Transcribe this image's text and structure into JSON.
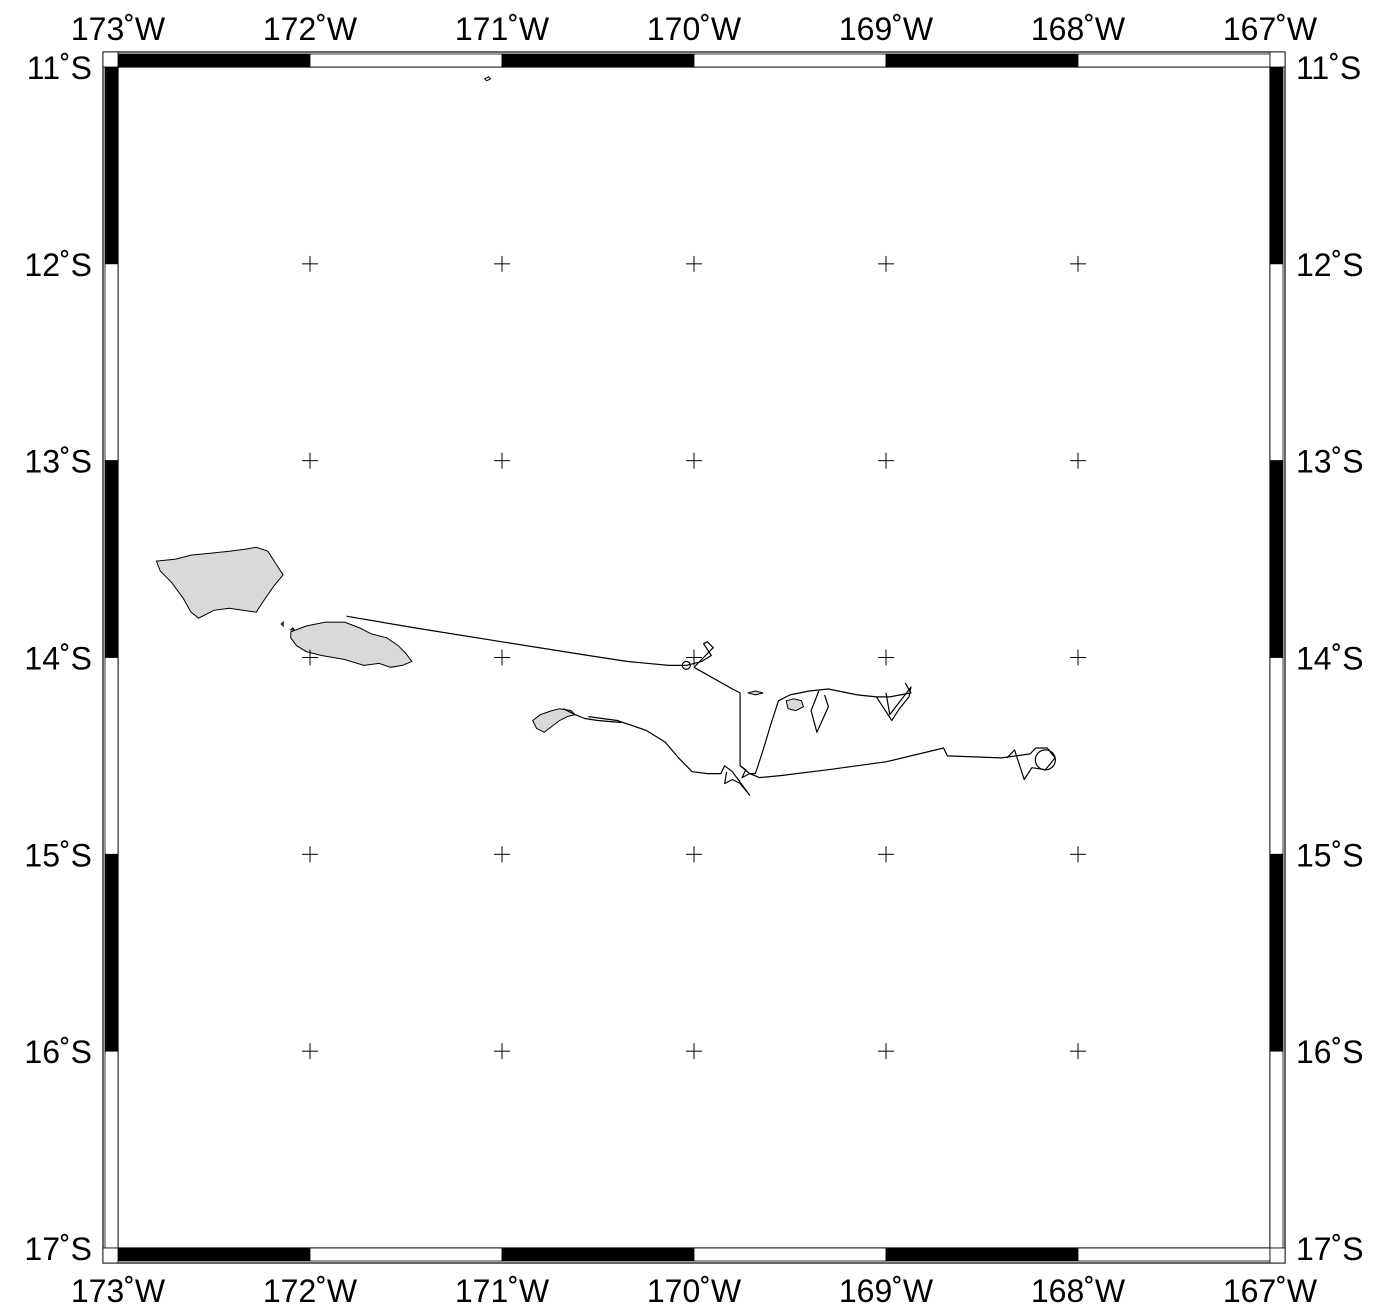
{
  "map": {
    "lon_range": [
      -173,
      -167
    ],
    "lat_range": [
      -17,
      -11
    ],
    "projection": "linear",
    "frame_style": "checkerboard",
    "grid": "crosses",
    "colors": {
      "land": "#d9d9d9",
      "frame_dark": "#000000",
      "frame_light": "#ffffff",
      "background": "#ffffff"
    },
    "longitude_ticks": [
      {
        "value": -173,
        "label": "173˚W"
      },
      {
        "value": -172,
        "label": "172˚W"
      },
      {
        "value": -171,
        "label": "171˚W"
      },
      {
        "value": -170,
        "label": "170˚W"
      },
      {
        "value": -169,
        "label": "169˚W"
      },
      {
        "value": -168,
        "label": "168˚W"
      },
      {
        "value": -167,
        "label": "167˚W"
      }
    ],
    "latitude_ticks": [
      {
        "value": -11,
        "label": "11˚S"
      },
      {
        "value": -12,
        "label": "12˚S"
      },
      {
        "value": -13,
        "label": "13˚S"
      },
      {
        "value": -14,
        "label": "14˚S"
      },
      {
        "value": -15,
        "label": "15˚S"
      },
      {
        "value": -16,
        "label": "16˚S"
      },
      {
        "value": -17,
        "label": "17˚S"
      }
    ],
    "islands": [
      {
        "name": "savaii",
        "points": [
          [
            -172.8,
            -13.51
          ],
          [
            -172.7,
            -13.5
          ],
          [
            -172.62,
            -13.48
          ],
          [
            -172.52,
            -13.47
          ],
          [
            -172.42,
            -13.46
          ],
          [
            -172.34,
            -13.45
          ],
          [
            -172.28,
            -13.44
          ],
          [
            -172.22,
            -13.46
          ],
          [
            -172.18,
            -13.52
          ],
          [
            -172.14,
            -13.58
          ],
          [
            -172.19,
            -13.64
          ],
          [
            -172.24,
            -13.71
          ],
          [
            -172.28,
            -13.77
          ],
          [
            -172.35,
            -13.76
          ],
          [
            -172.42,
            -13.75
          ],
          [
            -172.5,
            -13.76
          ],
          [
            -172.58,
            -13.8
          ],
          [
            -172.62,
            -13.77
          ],
          [
            -172.66,
            -13.7
          ],
          [
            -172.72,
            -13.62
          ],
          [
            -172.78,
            -13.56
          ],
          [
            -172.8,
            -13.51
          ]
        ]
      },
      {
        "name": "upolu",
        "points": [
          [
            -172.1,
            -13.87
          ],
          [
            -172.02,
            -13.84
          ],
          [
            -171.92,
            -13.82
          ],
          [
            -171.82,
            -13.82
          ],
          [
            -171.74,
            -13.85
          ],
          [
            -171.68,
            -13.88
          ],
          [
            -171.6,
            -13.9
          ],
          [
            -171.54,
            -13.94
          ],
          [
            -171.5,
            -13.98
          ],
          [
            -171.47,
            -14.02
          ],
          [
            -171.52,
            -14.04
          ],
          [
            -171.58,
            -14.05
          ],
          [
            -171.64,
            -14.03
          ],
          [
            -171.72,
            -14.04
          ],
          [
            -171.82,
            -14.01
          ],
          [
            -171.94,
            -13.99
          ],
          [
            -172.02,
            -13.97
          ],
          [
            -172.07,
            -13.94
          ],
          [
            -172.1,
            -13.9
          ],
          [
            -172.1,
            -13.87
          ]
        ]
      },
      {
        "name": "tutuila",
        "points": [
          [
            -170.84,
            -14.32
          ],
          [
            -170.8,
            -14.29
          ],
          [
            -170.74,
            -14.27
          ],
          [
            -170.7,
            -14.26
          ],
          [
            -170.64,
            -14.27
          ],
          [
            -170.62,
            -14.29
          ],
          [
            -170.66,
            -14.3
          ],
          [
            -170.7,
            -14.32
          ],
          [
            -170.74,
            -14.35
          ],
          [
            -170.78,
            -14.38
          ],
          [
            -170.82,
            -14.36
          ],
          [
            -170.84,
            -14.32
          ]
        ]
      },
      {
        "name": "tau",
        "points": [
          [
            -169.52,
            -14.22
          ],
          [
            -169.48,
            -14.21
          ],
          [
            -169.44,
            -14.22
          ],
          [
            -169.43,
            -14.25
          ],
          [
            -169.47,
            -14.27
          ],
          [
            -169.51,
            -14.26
          ],
          [
            -169.52,
            -14.22
          ]
        ]
      },
      {
        "name": "ofu",
        "points": [
          [
            -169.72,
            -14.18
          ],
          [
            -169.68,
            -14.17
          ],
          [
            -169.64,
            -14.18
          ],
          [
            -169.68,
            -14.19
          ],
          [
            -169.72,
            -14.18
          ]
        ]
      },
      {
        "name": "apolima",
        "points": [
          [
            -172.15,
            -13.83
          ],
          [
            -172.14,
            -13.82
          ],
          [
            -172.14,
            -13.84
          ],
          [
            -172.15,
            -13.83
          ]
        ]
      },
      {
        "name": "manono",
        "points": [
          [
            -172.1,
            -13.86
          ],
          [
            -172.09,
            -13.85
          ],
          [
            -172.08,
            -13.86
          ],
          [
            -172.1,
            -13.86
          ]
        ]
      },
      {
        "name": "swains",
        "points": [
          [
            -171.09,
            -11.06
          ],
          [
            -171.07,
            -11.05
          ],
          [
            -171.06,
            -11.06
          ],
          [
            -171.08,
            -11.07
          ],
          [
            -171.09,
            -11.06
          ]
        ]
      }
    ],
    "tracks": [
      [
        [
          -171.81,
          -13.79
        ],
        [
          -171.45,
          -13.85
        ],
        [
          -171.0,
          -13.92
        ],
        [
          -170.55,
          -13.99
        ],
        [
          -170.35,
          -14.02
        ],
        [
          -170.13,
          -14.04
        ],
        [
          -170.04,
          -14.04
        ],
        [
          -169.96,
          -14.02
        ],
        [
          -169.91,
          -13.99
        ],
        [
          -169.95,
          -13.93
        ],
        [
          -169.93,
          -13.92
        ],
        [
          -169.9,
          -13.95
        ],
        [
          -169.95,
          -14.0
        ],
        [
          -170.0,
          -14.05
        ],
        [
          -169.8,
          -14.16
        ],
        [
          -169.76,
          -14.18
        ],
        [
          -169.76,
          -14.55
        ],
        [
          -169.73,
          -14.57
        ],
        [
          -169.75,
          -14.61
        ],
        [
          -169.71,
          -14.59
        ],
        [
          -169.66,
          -14.61
        ],
        [
          -169.55,
          -14.6
        ],
        [
          -169.3,
          -14.57
        ],
        [
          -169.0,
          -14.53
        ],
        [
          -168.7,
          -14.46
        ],
        [
          -168.68,
          -14.5
        ],
        [
          -168.4,
          -14.51
        ],
        [
          -168.25,
          -14.49
        ]
      ],
      [
        [
          -169.76,
          -14.55
        ],
        [
          -169.71,
          -14.59
        ],
        [
          -169.68,
          -14.59
        ],
        [
          -169.64,
          -14.47
        ],
        [
          -169.6,
          -14.34
        ],
        [
          -169.56,
          -14.22
        ],
        [
          -169.5,
          -14.19
        ],
        [
          -169.4,
          -14.17
        ],
        [
          -169.3,
          -14.16
        ],
        [
          -169.15,
          -14.19
        ],
        [
          -169.05,
          -14.2
        ],
        [
          -168.98,
          -14.2
        ],
        [
          -168.87,
          -14.18
        ],
        [
          -168.9,
          -14.13
        ]
      ],
      [
        [
          -169.05,
          -14.2
        ],
        [
          -168.97,
          -14.32
        ],
        [
          -168.93,
          -14.26
        ],
        [
          -168.88,
          -14.2
        ],
        [
          -168.87,
          -14.15
        ],
        [
          -168.98,
          -14.29
        ],
        [
          -169.0,
          -14.18
        ]
      ],
      [
        [
          -169.35,
          -14.17
        ],
        [
          -169.39,
          -14.27
        ],
        [
          -169.36,
          -14.38
        ],
        [
          -169.3,
          -14.25
        ],
        [
          -169.32,
          -14.19
        ]
      ],
      [
        [
          -170.38,
          -14.33
        ],
        [
          -170.5,
          -14.32
        ],
        [
          -170.57,
          -14.31
        ],
        [
          -170.62,
          -14.29
        ],
        [
          -170.68,
          -14.26
        ]
      ],
      [
        [
          -170.55,
          -14.3
        ],
        [
          -170.4,
          -14.32
        ],
        [
          -170.25,
          -14.37
        ],
        [
          -170.15,
          -14.43
        ],
        [
          -170.08,
          -14.51
        ],
        [
          -170.01,
          -14.58
        ],
        [
          -169.93,
          -14.59
        ],
        [
          -169.86,
          -14.59
        ],
        [
          -169.84,
          -14.55
        ],
        [
          -169.8,
          -14.58
        ],
        [
          -169.74,
          -14.66
        ],
        [
          -169.71,
          -14.7
        ],
        [
          -169.76,
          -14.64
        ],
        [
          -169.8,
          -14.62
        ],
        [
          -169.84,
          -14.64
        ],
        [
          -169.83,
          -14.58
        ]
      ],
      [
        [
          -168.25,
          -14.49
        ],
        [
          -168.22,
          -14.46
        ],
        [
          -168.16,
          -14.46
        ],
        [
          -168.12,
          -14.51
        ],
        [
          -168.17,
          -14.57
        ],
        [
          -168.24,
          -14.56
        ],
        [
          -168.28,
          -14.62
        ],
        [
          -168.33,
          -14.47
        ],
        [
          -168.37,
          -14.51
        ]
      ]
    ]
  }
}
